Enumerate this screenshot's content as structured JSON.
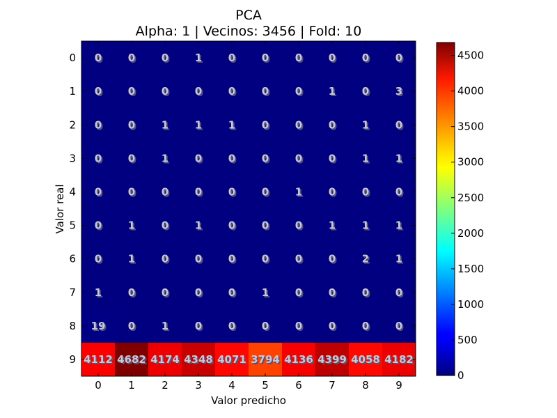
{
  "chart_data": {
    "type": "heatmap",
    "title": "PCA",
    "subtitle": "Alpha: 1 | Vecinos: 3456 | Fold: 10",
    "xlabel": "Valor predicho",
    "ylabel": "Valor real",
    "x_categories": [
      "0",
      "1",
      "2",
      "3",
      "4",
      "5",
      "6",
      "7",
      "8",
      "9"
    ],
    "y_categories": [
      "0",
      "1",
      "2",
      "3",
      "4",
      "5",
      "6",
      "7",
      "8",
      "9"
    ],
    "matrix": [
      [
        0,
        0,
        0,
        1,
        0,
        0,
        0,
        0,
        0,
        0
      ],
      [
        0,
        0,
        0,
        0,
        0,
        0,
        0,
        1,
        0,
        3
      ],
      [
        0,
        0,
        1,
        1,
        1,
        0,
        0,
        0,
        1,
        0
      ],
      [
        0,
        0,
        1,
        0,
        0,
        0,
        0,
        0,
        1,
        1
      ],
      [
        0,
        0,
        0,
        0,
        0,
        0,
        1,
        0,
        0,
        0
      ],
      [
        0,
        1,
        0,
        1,
        0,
        0,
        0,
        1,
        1,
        1
      ],
      [
        0,
        1,
        0,
        0,
        0,
        0,
        0,
        0,
        2,
        1
      ],
      [
        1,
        0,
        0,
        0,
        0,
        1,
        0,
        0,
        0,
        0
      ],
      [
        19,
        0,
        1,
        0,
        0,
        0,
        0,
        0,
        0,
        0
      ],
      [
        4112,
        4682,
        4174,
        4348,
        4071,
        3794,
        4136,
        4399,
        4058,
        4182
      ]
    ],
    "colormap": "jet",
    "vmin": 0,
    "vmax": 4682,
    "colorbar_ticks": [
      "0",
      "500",
      "1000",
      "1500",
      "2000",
      "2500",
      "3000",
      "3500",
      "4000",
      "4500"
    ]
  }
}
